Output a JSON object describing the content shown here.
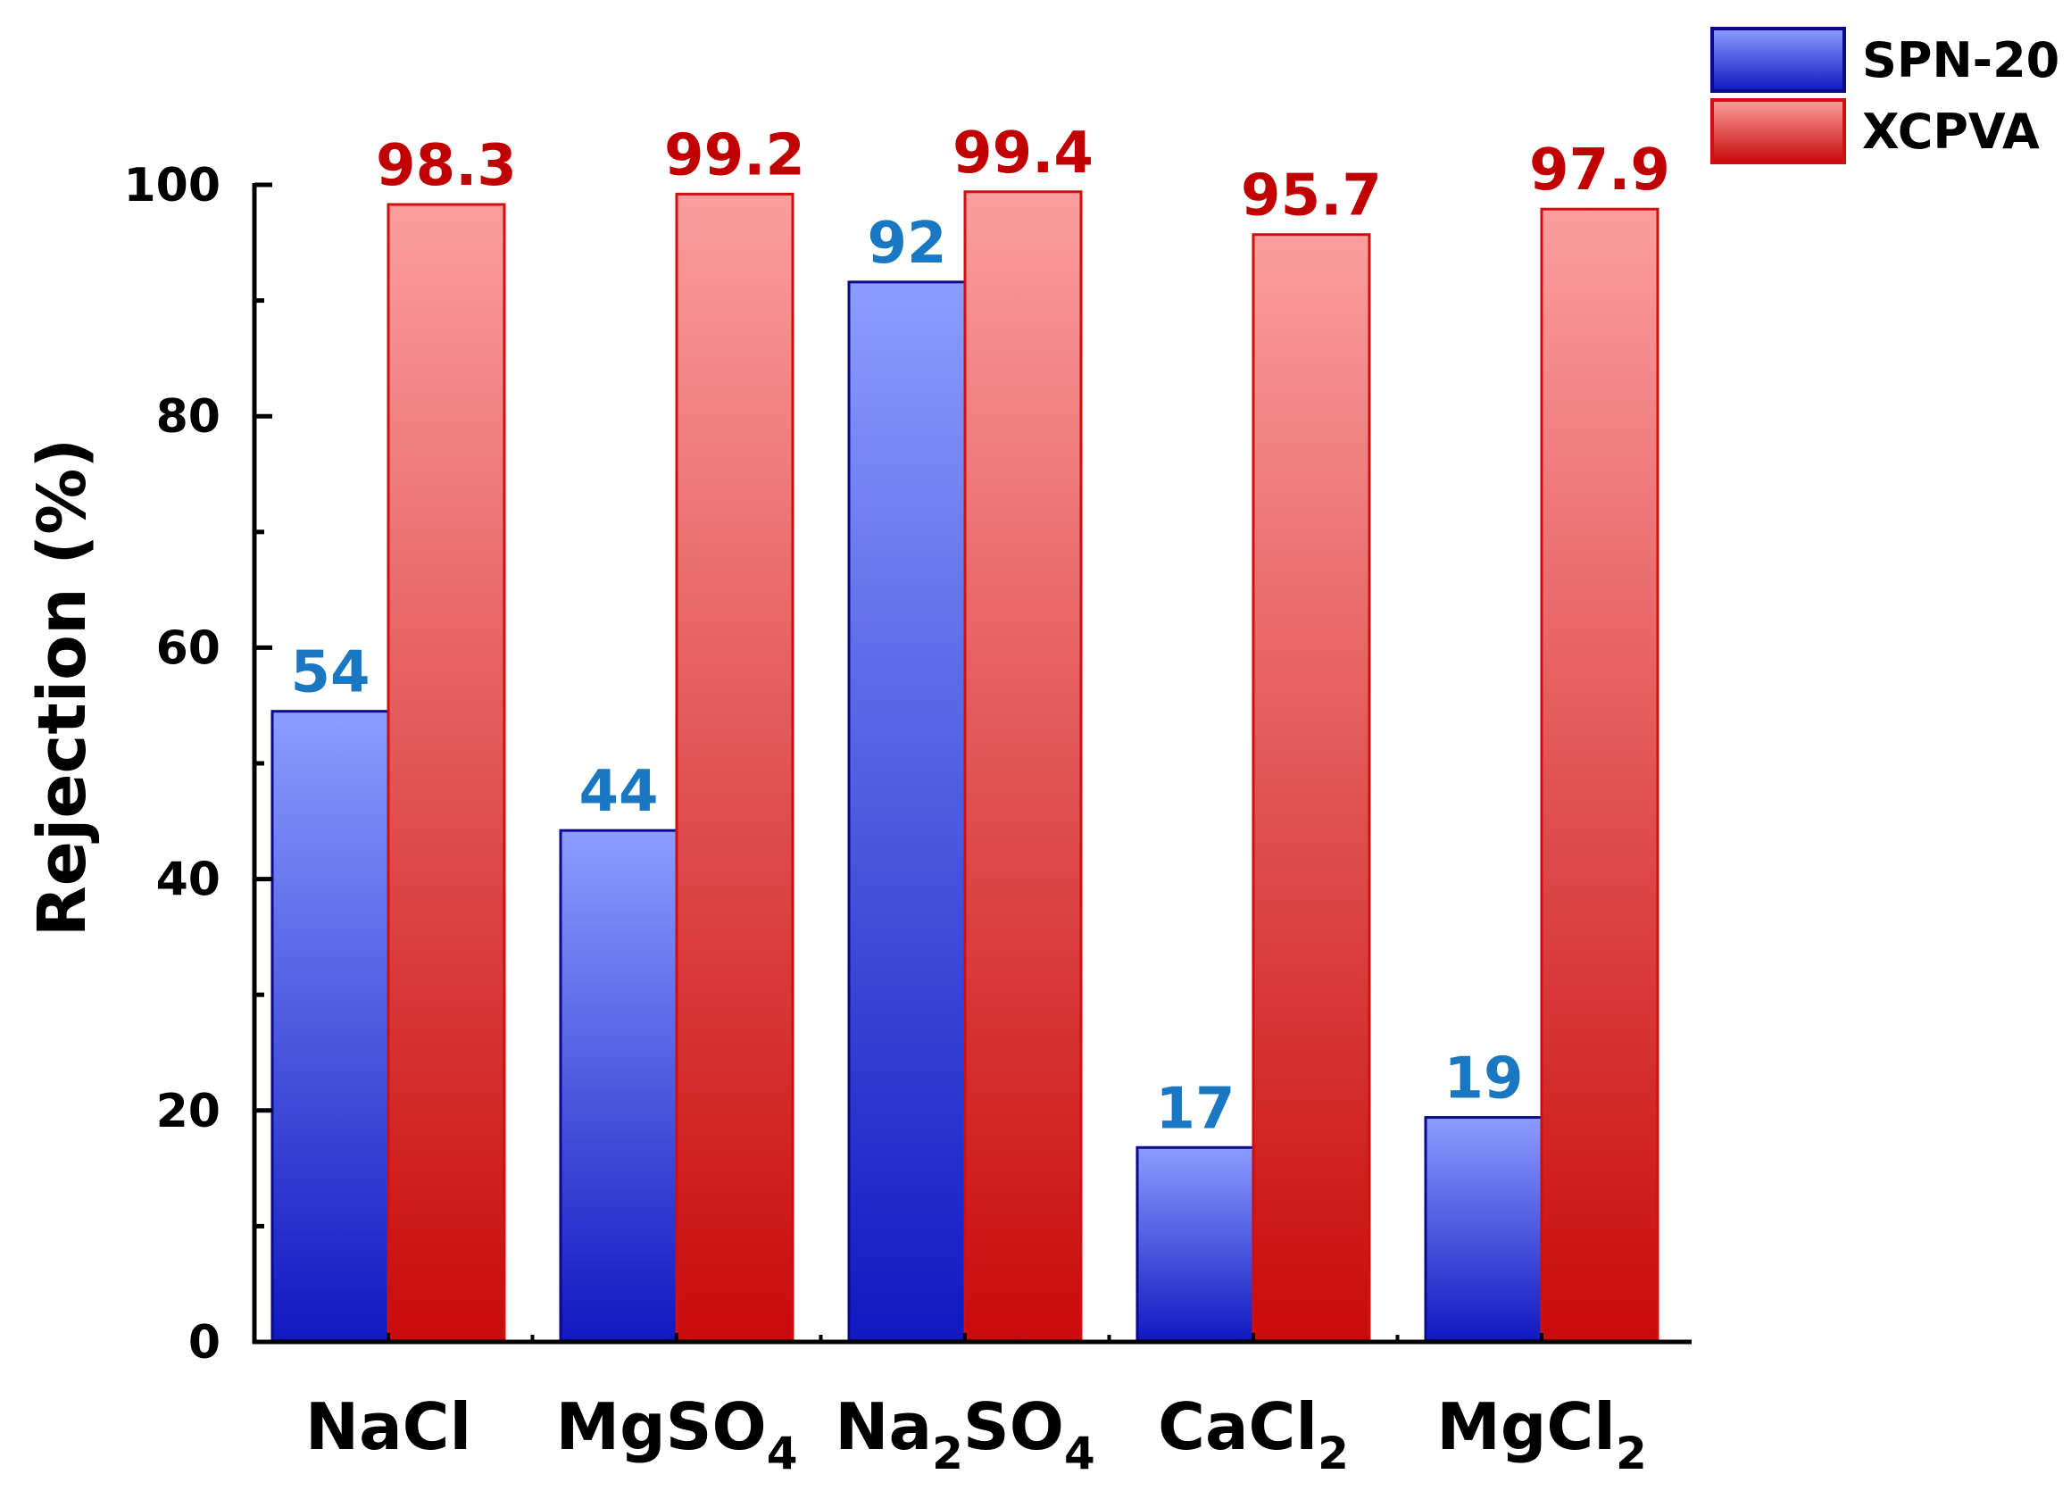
{
  "chart_data": {
    "type": "bar",
    "categories": [
      {
        "base": "NaCl",
        "sub": ""
      },
      {
        "base": "MgSO",
        "sub": "4"
      },
      {
        "parts": [
          {
            "t": "Na",
            "s": false
          },
          {
            "t": "2",
            "s": true
          },
          {
            "t": "SO",
            "s": false
          },
          {
            "t": "4",
            "s": true
          }
        ]
      },
      {
        "base": "CaCl",
        "sub": "2"
      },
      {
        "base": "MgCl",
        "sub": "2"
      }
    ],
    "series": [
      {
        "name": "SPN-20",
        "values": [
          54.5,
          44.2,
          91.6,
          16.8,
          19.4
        ],
        "labels": [
          "54",
          "44",
          "92",
          "17",
          "19"
        ],
        "color_top": "#8c9cff",
        "color_bottom": "#1018c0",
        "edge": "#0a0a8a",
        "label_color": "#1a78c2"
      },
      {
        "name": "XCPVA",
        "values": [
          98.3,
          99.2,
          99.4,
          95.7,
          97.9
        ],
        "labels": [
          "98.3",
          "99.2",
          "99.4",
          "95.7",
          "97.9"
        ],
        "color_top": "#fb9e9e",
        "color_bottom": "#c80a0a",
        "edge": "#d01010",
        "label_color": "#c00000"
      }
    ],
    "ylabel": "Rejection (%)",
    "xlabel": "",
    "ylim": [
      0,
      100
    ],
    "yticks": [
      0,
      20,
      40,
      60,
      80,
      100
    ],
    "grid": false,
    "legend": "top-right"
  }
}
